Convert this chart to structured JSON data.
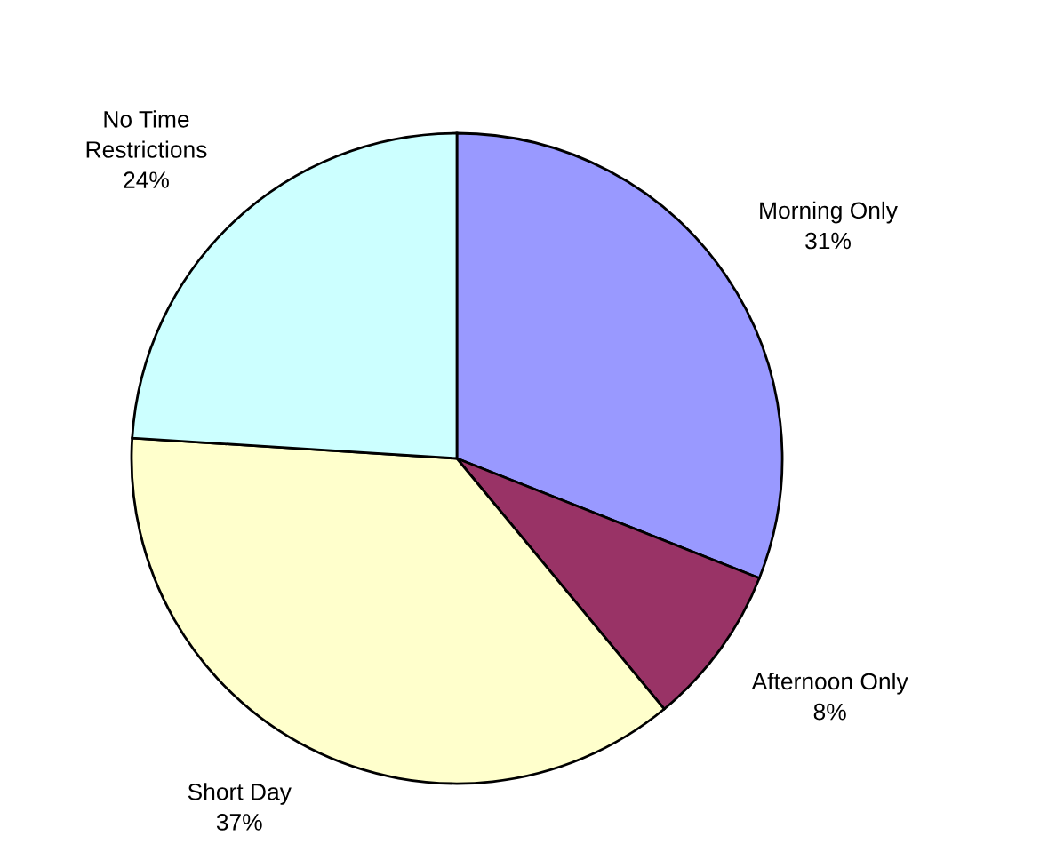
{
  "chart_data": {
    "type": "pie",
    "categories": [
      "Morning Only",
      "Afternoon Only",
      "Short Day",
      "No Time Restrictions"
    ],
    "values": [
      31,
      8,
      37,
      24
    ],
    "colors": [
      "#9999ff",
      "#993366",
      "#ffffcc",
      "#ccffff"
    ],
    "value_labels": [
      "31%",
      "8%",
      "37%",
      "24%"
    ]
  }
}
